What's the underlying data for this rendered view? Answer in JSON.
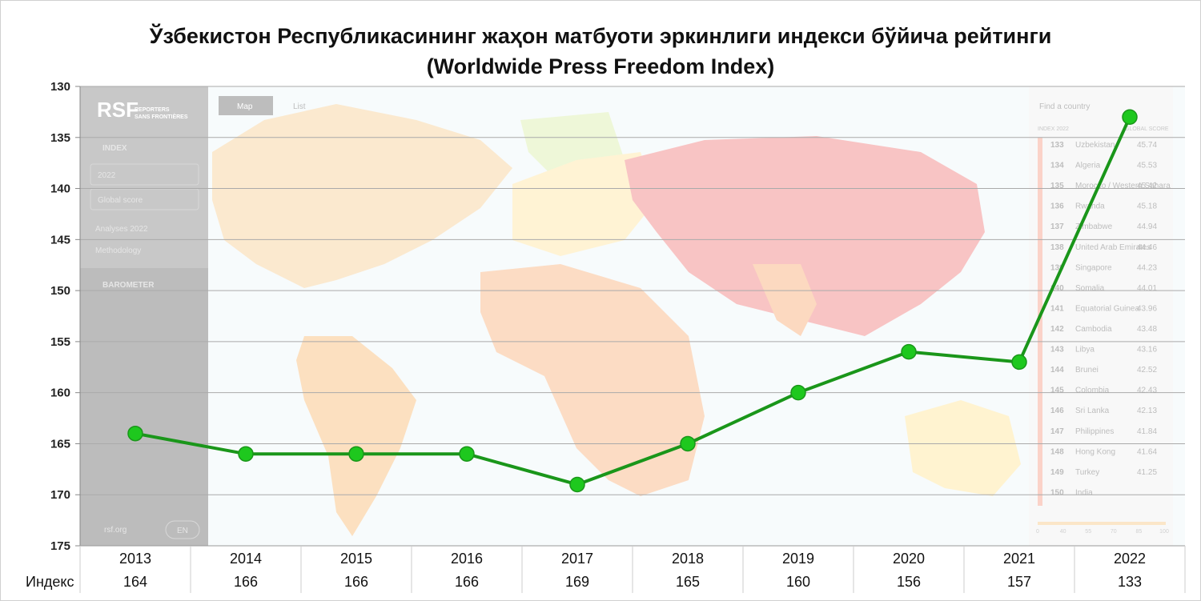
{
  "chart_data": {
    "type": "line",
    "title_line1": "Ўзбекистон Республикасининг жаҳон матбуоти эркинлиги индекси бўйича рейтинги",
    "title_line2": "(Worldwide Press Freedom Index)",
    "x": [
      "2013",
      "2014",
      "2015",
      "2016",
      "2017",
      "2018",
      "2019",
      "2020",
      "2021",
      "2022"
    ],
    "y": [
      164,
      166,
      166,
      166,
      169,
      165,
      160,
      156,
      157,
      133
    ],
    "ylim": [
      175,
      130
    ],
    "y_inverted": true,
    "yticks": [
      "130",
      "135",
      "140",
      "145",
      "150",
      "155",
      "160",
      "165",
      "170",
      "175"
    ],
    "grid": true,
    "table_row_label": "Индекс",
    "table_values": [
      "164",
      "166",
      "166",
      "166",
      "169",
      "165",
      "160",
      "156",
      "157",
      "133"
    ],
    "line_color": "#1a961a",
    "marker_color": "#1ec81e"
  },
  "background_screenshot": {
    "logo_text": "RSF",
    "logo_sub1": "REPORTERS",
    "logo_sub2": "SANS FRONTIÈRES",
    "index_label": "INDEX",
    "year_select": "2022",
    "score_select": "Global score",
    "analyses": "Analyses 2022",
    "methodology": "Methodology",
    "barometer": "BAROMETER",
    "site": "rsf.org",
    "lang": "EN",
    "map_tab": "Map",
    "list_tab": "List",
    "search_placeholder": "Find a country",
    "col_index": "INDEX 2022",
    "col_score": "GLOBAL SCORE",
    "ranking": [
      {
        "rank": "133",
        "country": "Uzbekistan",
        "score": "45.74"
      },
      {
        "rank": "134",
        "country": "Algeria",
        "score": "45.53"
      },
      {
        "rank": "135",
        "country": "Morocco / Western Sahara",
        "score": "45.42"
      },
      {
        "rank": "136",
        "country": "Rwanda",
        "score": "45.18"
      },
      {
        "rank": "137",
        "country": "Zimbabwe",
        "score": "44.94"
      },
      {
        "rank": "138",
        "country": "United Arab Emirates",
        "score": "44.46"
      },
      {
        "rank": "139",
        "country": "Singapore",
        "score": "44.23"
      },
      {
        "rank": "140",
        "country": "Somalia",
        "score": "44.01"
      },
      {
        "rank": "141",
        "country": "Equatorial Guinea",
        "score": "43.96"
      },
      {
        "rank": "142",
        "country": "Cambodia",
        "score": "43.48"
      },
      {
        "rank": "143",
        "country": "Libya",
        "score": "43.16"
      },
      {
        "rank": "144",
        "country": "Brunei",
        "score": "42.52"
      },
      {
        "rank": "145",
        "country": "Colombia",
        "score": "42.43"
      },
      {
        "rank": "146",
        "country": "Sri Lanka",
        "score": "42.13"
      },
      {
        "rank": "147",
        "country": "Philippines",
        "score": "41.84"
      },
      {
        "rank": "148",
        "country": "Hong Kong",
        "score": "41.64"
      },
      {
        "rank": "149",
        "country": "Turkey",
        "score": "41.25"
      },
      {
        "rank": "150",
        "country": "India",
        "score": ""
      }
    ],
    "scale_labels": [
      "0",
      "40",
      "55",
      "70",
      "85",
      "100"
    ]
  }
}
